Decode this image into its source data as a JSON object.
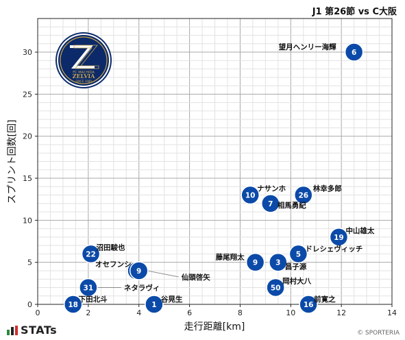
{
  "chart_data": {
    "type": "scatter",
    "title": "J1 第26節 vs C大阪",
    "xlabel": "走行距離[km]",
    "ylabel": "スプリント回数[回]",
    "xlim": [
      0,
      14
    ],
    "ylim": [
      0,
      34
    ],
    "xticks": [
      0,
      2,
      4,
      6,
      8,
      10,
      12,
      14
    ],
    "yticks": [
      0,
      5,
      10,
      15,
      20,
      25,
      30
    ],
    "grid": true,
    "marker_color": "#0b4aa8",
    "points": [
      {
        "number": "6",
        "name": "望月ヘンリー海輝",
        "x": 12.5,
        "y": 30
      },
      {
        "number": "10",
        "name": "ナサンホ",
        "x": 8.4,
        "y": 13
      },
      {
        "number": "26",
        "name": "林幸多郎",
        "x": 10.5,
        "y": 13
      },
      {
        "number": "7",
        "name": "相馬勇紀",
        "x": 9.2,
        "y": 12
      },
      {
        "number": "19",
        "name": "中山雄太",
        "x": 11.9,
        "y": 8
      },
      {
        "number": "5",
        "name": "ドレシェヴィッチ",
        "x": 10.3,
        "y": 6
      },
      {
        "number": "22",
        "name": "沼田駿也",
        "x": 2.1,
        "y": 6
      },
      {
        "number": "9",
        "name": "藤尾翔太",
        "x": 8.6,
        "y": 5
      },
      {
        "number": "3",
        "name": "昌子源",
        "x": 9.5,
        "y": 5
      },
      {
        "number": "90",
        "name": "オセフンシ",
        "x": 3.9,
        "y": 4
      },
      {
        "number": "9",
        "name": "仙頭啓矢",
        "x": 4.0,
        "y": 4
      },
      {
        "number": "50",
        "name": "岡村大八",
        "x": 9.4,
        "y": 2
      },
      {
        "number": "31",
        "name": "ネタラヴィ",
        "x": 2.0,
        "y": 2
      },
      {
        "number": "18",
        "name": "下田北斗",
        "x": 1.4,
        "y": 0
      },
      {
        "number": "1",
        "name": "谷晃生",
        "x": 4.6,
        "y": 0
      },
      {
        "number": "16",
        "name": "前寛之",
        "x": 10.7,
        "y": 0
      }
    ]
  },
  "logo": {
    "line1": "FC MACHIDA",
    "line2": "ZELVIA",
    "line3": "SINCE 1989",
    "colors": {
      "navy": "#0c2a6a",
      "gold": "#c9a54a",
      "white": "#ffffff"
    }
  },
  "brand": {
    "name": "STATs",
    "icon": "stats-bars-icon",
    "colors": [
      "#2a8a3a",
      "#d22d2d"
    ]
  },
  "copyright": "© SPORTERIA"
}
